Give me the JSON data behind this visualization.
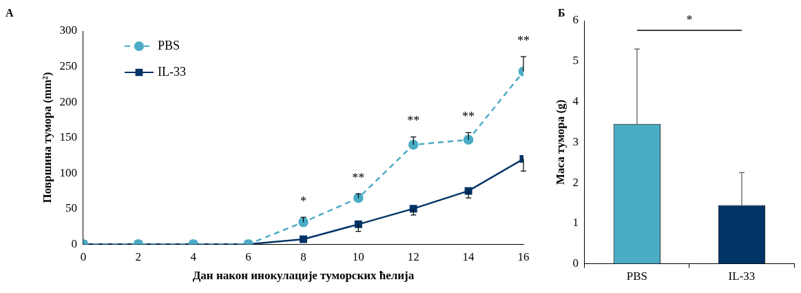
{
  "chart_data": [
    {
      "type": "line",
      "title": "A",
      "xlabel": "Дан након инокулације туморских ћелија",
      "ylabel": "Површина тумора (mm²)",
      "x": [
        0,
        2,
        4,
        6,
        8,
        10,
        12,
        14,
        16
      ],
      "xlim": [
        0,
        16
      ],
      "xticks": [
        0,
        2,
        4,
        6,
        8,
        10,
        12,
        14,
        16
      ],
      "ylim": [
        0,
        300
      ],
      "yticks": [
        0,
        50,
        100,
        150,
        200,
        250,
        300
      ],
      "grid": false,
      "legend": "top left",
      "series": [
        {
          "name": "PBS",
          "color": "#4bacc6",
          "marker": "circle",
          "line_style": "dashed",
          "values": [
            0,
            0,
            0,
            0,
            31,
            65,
            140,
            147,
            243
          ],
          "errors": [
            null,
            null,
            null,
            null,
            [
              31,
              38
            ],
            [
              65,
              71
            ],
            [
              140,
              151
            ],
            [
              147,
              157
            ],
            [
              243,
              264
            ]
          ]
        },
        {
          "name": "IL-33",
          "color": "#003366",
          "marker": "square",
          "line_style": "solid",
          "values": [
            0,
            0,
            0,
            0,
            7,
            28,
            50,
            75,
            120
          ],
          "errors": [
            null,
            null,
            null,
            null,
            null,
            [
              18,
              28
            ],
            [
              41,
              50
            ],
            [
              65,
              75
            ],
            [
              103,
              120
            ]
          ]
        }
      ],
      "annotations": [
        "*",
        "**",
        "**",
        "**",
        "**"
      ]
    },
    {
      "type": "bar",
      "title": "Б",
      "ylabel": "Маса тумора (g)",
      "categories": [
        "PBS",
        "IL-33"
      ],
      "values": [
        3.45,
        1.45
      ],
      "colors": [
        "#4bacc6",
        "#003366"
      ],
      "errors": [
        [
          3.45,
          5.3
        ],
        [
          1.45,
          2.25
        ]
      ],
      "ylim": [
        0,
        6
      ],
      "yticks": [
        0,
        1,
        2,
        3,
        4,
        5,
        6
      ],
      "grid": false,
      "legend": false,
      "annotations": [
        "*"
      ]
    }
  ]
}
